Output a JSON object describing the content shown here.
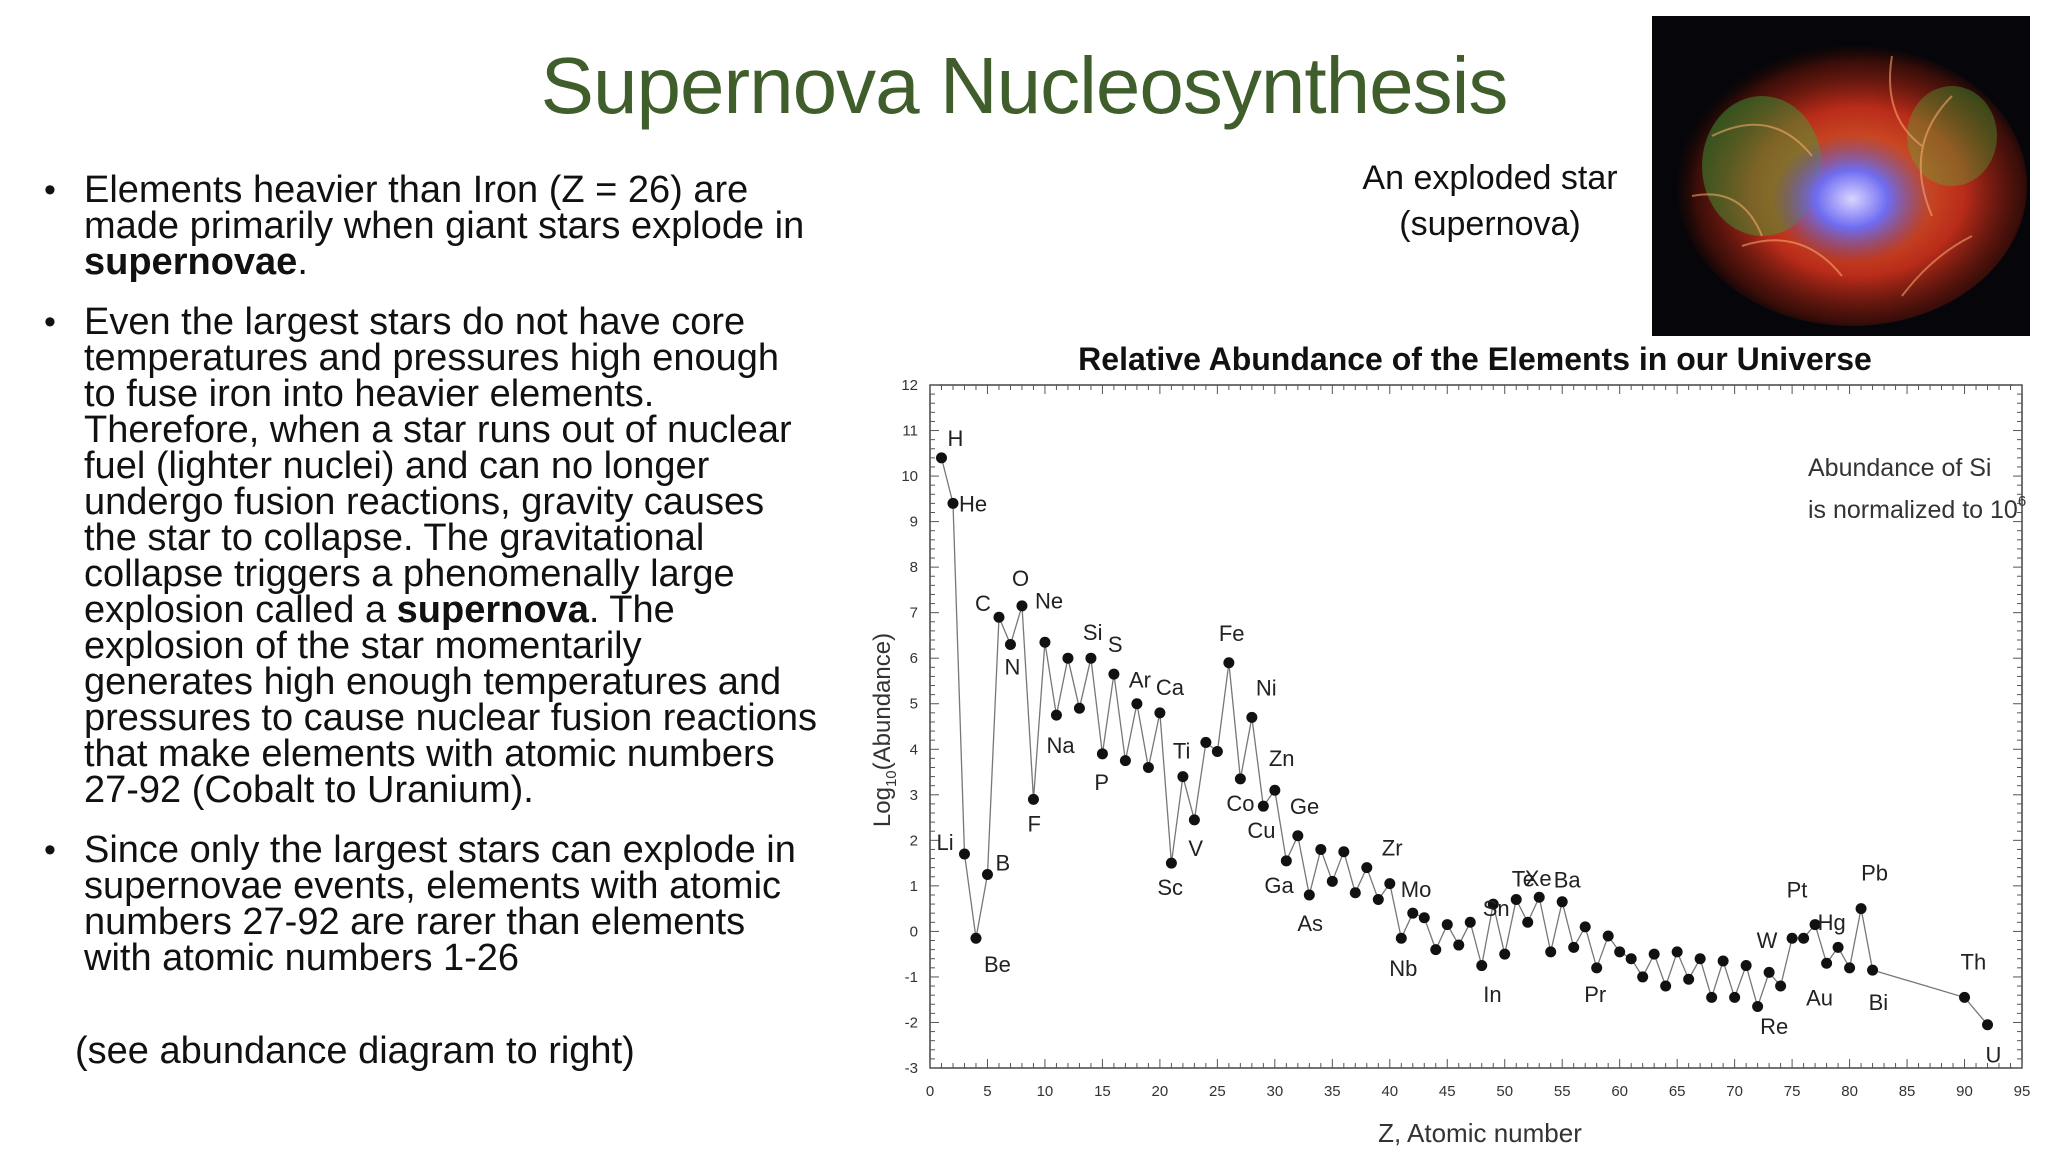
{
  "slide": {
    "title": "Supernova Nucleosynthesis",
    "bullets": [
      {
        "parts": [
          {
            "text": "Elements heavier than Iron (Z = 26) are made primarily when giant stars explode in ",
            "bold": false
          },
          {
            "text": "supernovae",
            "bold": true
          },
          {
            "text": ".",
            "bold": false
          }
        ]
      },
      {
        "parts": [
          {
            "text": "Even the largest stars do not have core temperatures and pressures high enough to fuse iron into heavier elements. Therefore, when a star runs out of nuclear fuel (lighter nuclei) and can no longer undergo fusion reactions, gravity causes the star to collapse.  The gravitational collapse triggers a phenomenally large explosion called a ",
            "bold": false
          },
          {
            "text": "supernova",
            "bold": true
          },
          {
            "text": ".  The explosion of the star momentarily generates high enough temperatures and pressures to cause nuclear fusion reactions that make elements with atomic numbers 27-92 (Cobalt to Uranium).",
            "bold": false
          }
        ]
      },
      {
        "parts": [
          {
            "text": "Since only the largest stars can explode in supernovae events, elements with atomic numbers 27-92 are rarer than elements with atomic numbers 1-26",
            "bold": false
          }
        ]
      }
    ],
    "bullet_glyph": "•",
    "see_note": "(see abundance diagram to right)",
    "star_caption_line1": "An exploded star",
    "star_caption_line2": "(supernova)",
    "star_image_icon": "supernova-photo-icon"
  },
  "chart_data": {
    "type": "line",
    "title": "Relative Abundance of the Elements in our Universe",
    "xlabel": "Z, Atomic number",
    "ylabel_prefix": "Log",
    "ylabel_sub": "10",
    "ylabel_suffix": "(Abundance)",
    "annotation_line1": "Abundance of Si",
    "annotation_line2": "is normalized to 10",
    "annotation_sup": "6",
    "xlim": [
      0,
      95
    ],
    "ylim": [
      -3,
      12
    ],
    "xticks": [
      0,
      5,
      10,
      15,
      20,
      25,
      30,
      35,
      40,
      45,
      50,
      55,
      60,
      65,
      70,
      75,
      80,
      85,
      90,
      95
    ],
    "yticks": [
      -3,
      -2,
      -1,
      0,
      1,
      2,
      3,
      4,
      5,
      6,
      7,
      8,
      9,
      10,
      11,
      12
    ],
    "points": [
      [
        1,
        10.4
      ],
      [
        2,
        9.4
      ],
      [
        3,
        1.7
      ],
      [
        4,
        -0.15
      ],
      [
        5,
        1.25
      ],
      [
        6,
        6.9
      ],
      [
        7,
        6.3
      ],
      [
        8,
        7.15
      ],
      [
        9,
        2.9
      ],
      [
        10,
        6.35
      ],
      [
        11,
        4.75
      ],
      [
        12,
        6.0
      ],
      [
        13,
        4.9
      ],
      [
        14,
        6.0
      ],
      [
        15,
        3.9
      ],
      [
        16,
        5.65
      ],
      [
        17,
        3.75
      ],
      [
        18,
        5.0
      ],
      [
        19,
        3.6
      ],
      [
        20,
        4.8
      ],
      [
        21,
        1.5
      ],
      [
        22,
        3.4
      ],
      [
        23,
        2.45
      ],
      [
        24,
        4.15
      ],
      [
        25,
        3.95
      ],
      [
        26,
        5.9
      ],
      [
        27,
        3.35
      ],
      [
        28,
        4.7
      ],
      [
        29,
        2.75
      ],
      [
        30,
        3.1
      ],
      [
        31,
        1.55
      ],
      [
        32,
        2.1
      ],
      [
        33,
        0.8
      ],
      [
        34,
        1.8
      ],
      [
        35,
        1.1
      ],
      [
        36,
        1.75
      ],
      [
        37,
        0.85
      ],
      [
        38,
        1.4
      ],
      [
        39,
        0.7
      ],
      [
        40,
        1.05
      ],
      [
        41,
        -0.15
      ],
      [
        42,
        0.4
      ],
      [
        43,
        0.3
      ],
      [
        44,
        -0.4
      ],
      [
        45,
        0.15
      ],
      [
        46,
        -0.3
      ],
      [
        47,
        0.2
      ],
      [
        48,
        -0.75
      ],
      [
        49,
        0.6
      ],
      [
        50,
        -0.5
      ],
      [
        51,
        0.7
      ],
      [
        52,
        0.2
      ],
      [
        53,
        0.75
      ],
      [
        54,
        -0.45
      ],
      [
        55,
        0.65
      ],
      [
        56,
        -0.35
      ],
      [
        57,
        0.1
      ],
      [
        58,
        -0.8
      ],
      [
        59,
        -0.1
      ],
      [
        60,
        -0.45
      ],
      [
        61,
        -0.6
      ],
      [
        62,
        -1.0
      ],
      [
        63,
        -0.5
      ],
      [
        64,
        -1.2
      ],
      [
        65,
        -0.45
      ],
      [
        66,
        -1.05
      ],
      [
        67,
        -0.6
      ],
      [
        68,
        -1.45
      ],
      [
        69,
        -0.65
      ],
      [
        70,
        -1.45
      ],
      [
        71,
        -0.75
      ],
      [
        72,
        -1.65
      ],
      [
        73,
        -0.9
      ],
      [
        74,
        -1.2
      ],
      [
        75,
        -0.15
      ],
      [
        76,
        -0.15
      ],
      [
        77,
        0.15
      ],
      [
        78,
        -0.7
      ],
      [
        79,
        -0.35
      ],
      [
        80,
        -0.8
      ],
      [
        81,
        0.5
      ],
      [
        82,
        -0.85
      ],
      [
        90,
        -1.45
      ],
      [
        92,
        -2.05
      ]
    ],
    "labels": [
      {
        "text": "H",
        "x": 1,
        "y": 10.4,
        "dx": 6,
        "dy": -12
      },
      {
        "text": "He",
        "x": 2,
        "y": 9.4,
        "dx": 6,
        "dy": 8
      },
      {
        "text": "Li",
        "x": 3,
        "y": 1.7,
        "dx": -28,
        "dy": -4
      },
      {
        "text": "Be",
        "x": 4,
        "y": -0.15,
        "dx": 8,
        "dy": 34
      },
      {
        "text": "B",
        "x": 5,
        "y": 1.25,
        "dx": 8,
        "dy": -4
      },
      {
        "text": "C",
        "x": 6,
        "y": 6.9,
        "dx": -24,
        "dy": -6
      },
      {
        "text": "N",
        "x": 7,
        "y": 6.3,
        "dx": -6,
        "dy": 30
      },
      {
        "text": "O",
        "x": 8,
        "y": 7.15,
        "dx": -10,
        "dy": -20
      },
      {
        "text": "F",
        "x": 9,
        "y": 2.9,
        "dx": -6,
        "dy": 32
      },
      {
        "text": "Ne",
        "x": 10,
        "y": 6.35,
        "dx": -10,
        "dy": -34
      },
      {
        "text": "Na",
        "x": 11,
        "y": 4.75,
        "dx": -10,
        "dy": 38
      },
      {
        "text": "Si",
        "x": 14,
        "y": 6.0,
        "dx": -8,
        "dy": -18
      },
      {
        "text": "P",
        "x": 15,
        "y": 3.9,
        "dx": -8,
        "dy": 36
      },
      {
        "text": "S",
        "x": 16,
        "y": 5.65,
        "dx": -6,
        "dy": -22
      },
      {
        "text": "Ar",
        "x": 18,
        "y": 5.0,
        "dx": -8,
        "dy": -16
      },
      {
        "text": "Ca",
        "x": 20,
        "y": 4.8,
        "dx": -4,
        "dy": -18
      },
      {
        "text": "Sc",
        "x": 21,
        "y": 1.5,
        "dx": -14,
        "dy": 32
      },
      {
        "text": "Ti",
        "x": 22,
        "y": 3.4,
        "dx": -10,
        "dy": -18
      },
      {
        "text": "V",
        "x": 23,
        "y": 2.45,
        "dx": -6,
        "dy": 36
      },
      {
        "text": "Fe",
        "x": 26,
        "y": 5.9,
        "dx": -10,
        "dy": -22
      },
      {
        "text": "Co",
        "x": 27,
        "y": 3.35,
        "dx": -14,
        "dy": 32
      },
      {
        "text": "Ni",
        "x": 28,
        "y": 4.7,
        "dx": 4,
        "dy": -22
      },
      {
        "text": "Cu",
        "x": 29,
        "y": 2.75,
        "dx": -16,
        "dy": 32
      },
      {
        "text": "Zn",
        "x": 30,
        "y": 3.1,
        "dx": -6,
        "dy": -24
      },
      {
        "text": "Ga",
        "x": 31,
        "y": 1.55,
        "dx": -22,
        "dy": 32
      },
      {
        "text": "Ge",
        "x": 32,
        "y": 2.1,
        "dx": -8,
        "dy": -22
      },
      {
        "text": "As",
        "x": 33,
        "y": 0.8,
        "dx": -12,
        "dy": 36
      },
      {
        "text": "Zr",
        "x": 40,
        "y": 1.05,
        "dx": -8,
        "dy": -28
      },
      {
        "text": "Nb",
        "x": 41,
        "y": -0.15,
        "dx": -12,
        "dy": 38
      },
      {
        "text": "Mo",
        "x": 42,
        "y": 0.4,
        "dx": -12,
        "dy": -16
      },
      {
        "text": "Sn",
        "x": 50,
        "y": -0.5,
        "dx": -22,
        "dy": -38
      },
      {
        "text": "In",
        "x": 49,
        "y": 0.6,
        "dx": -10,
        "dy": 98
      },
      {
        "text": "Te",
        "x": 52,
        "y": 0.2,
        "dx": -16,
        "dy": -36
      },
      {
        "text": "Xe",
        "x": 54,
        "y": -0.45,
        "dx": -26,
        "dy": -66
      },
      {
        "text": "Ba",
        "x": 56,
        "y": -0.35,
        "dx": -20,
        "dy": -60
      },
      {
        "text": "Pr",
        "x": 59,
        "y": -0.1,
        "dx": -24,
        "dy": 66
      },
      {
        "text": "W",
        "x": 74,
        "y": -1.2,
        "dx": -24,
        "dy": -38
      },
      {
        "text": "Re",
        "x": 75,
        "y": -0.15,
        "dx": -32,
        "dy": 96
      },
      {
        "text": "Pt",
        "x": 78,
        "y": -0.7,
        "dx": -40,
        "dy": -66
      },
      {
        "text": "Hg",
        "x": 80,
        "y": -0.8,
        "dx": -32,
        "dy": -38
      },
      {
        "text": "Au",
        "x": 79,
        "y": -0.35,
        "dx": -32,
        "dy": 58
      },
      {
        "text": "Pb",
        "x": 81,
        "y": 0.5,
        "dx": 0,
        "dy": -28
      },
      {
        "text": "Bi",
        "x": 82,
        "y": -0.85,
        "dx": -4,
        "dy": 40
      },
      {
        "text": "Th",
        "x": 90,
        "y": -1.45,
        "dx": -4,
        "dy": -28
      },
      {
        "text": "U",
        "x": 92,
        "y": -2.05,
        "dx": -2,
        "dy": 38
      }
    ]
  }
}
